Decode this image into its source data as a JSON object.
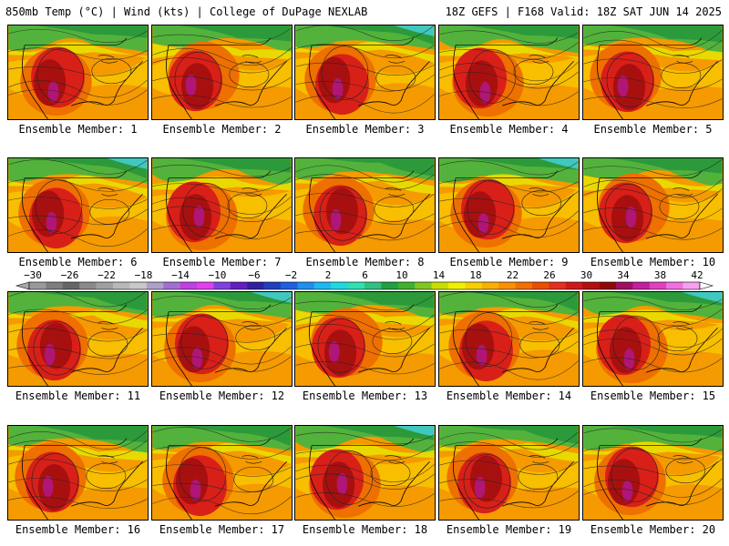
{
  "header": {
    "left": "850mb Temp (°C) | Wind (kts) | College of DuPage NEXLAB",
    "right": "18Z GEFS | F168 Valid: 18Z SAT JUN 14 2025"
  },
  "caption_prefix": "Ensemble Member: ",
  "members": [
    1,
    2,
    3,
    4,
    5,
    6,
    7,
    8,
    9,
    10,
    11,
    12,
    13,
    14,
    15,
    16,
    17,
    18,
    19,
    20
  ],
  "colorbar": {
    "labels": [
      "−30",
      "−26",
      "−22",
      "−18",
      "−14",
      "−10",
      "−6",
      "−2",
      "2",
      "6",
      "10",
      "14",
      "18",
      "22",
      "26",
      "30",
      "34",
      "38",
      "42"
    ],
    "colors": [
      "#9a9a9a",
      "#7e7e7e",
      "#666666",
      "#8a8a8a",
      "#a0a0a0",
      "#b8b8b8",
      "#c8c8c8",
      "#b0a0c8",
      "#a070d0",
      "#c040e0",
      "#e040f0",
      "#8040e0",
      "#6020c0",
      "#3020a0",
      "#2040c0",
      "#2060e0",
      "#2090f0",
      "#20b8f0",
      "#20d8e0",
      "#30e0b0",
      "#30c080",
      "#20a040",
      "#40b030",
      "#80c820",
      "#c8e000",
      "#f0f000",
      "#f8d000",
      "#f8b000",
      "#f89000",
      "#f07000",
      "#e85000",
      "#e03020",
      "#d01818",
      "#b01010",
      "#900808",
      "#a01060",
      "#c020a0",
      "#e040c0",
      "#f070e0",
      "#f8a0f0"
    ]
  },
  "colors": {
    "cold_green": "#2c9a3a",
    "mid_green": "#52b23c",
    "yellow": "#e8e000",
    "gold": "#f8c400",
    "orange": "#f59a00",
    "dark_orange": "#ee7000",
    "red": "#d82018",
    "dark_red": "#a81010",
    "magenta": "#b01890",
    "cyan": "#40c8c0"
  }
}
